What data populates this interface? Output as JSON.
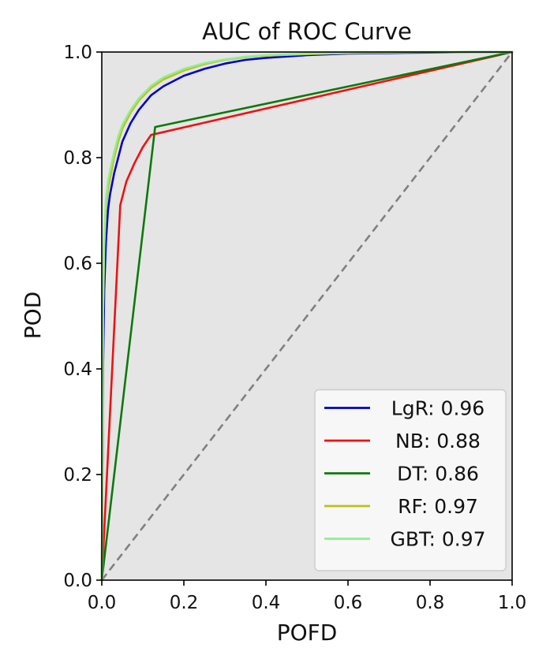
{
  "chart_data": {
    "type": "line",
    "title": "AUC of ROC Curve",
    "xlabel": "POFD",
    "ylabel": "POD",
    "xlim": [
      0,
      1
    ],
    "ylim": [
      0,
      1
    ],
    "xticks": [
      "0.0",
      "0.2",
      "0.4",
      "0.6",
      "0.8",
      "1.0"
    ],
    "yticks": [
      "0.0",
      "0.2",
      "0.4",
      "0.6",
      "0.8",
      "1.0"
    ],
    "background": "#e5e5e5",
    "grid": false,
    "legend_position": "lower-right",
    "diagonal": {
      "color": "#808080",
      "style": "dashed"
    },
    "series": [
      {
        "name": "LgR: 0.96",
        "color": "#0000cc",
        "x": [
          0,
          0.003,
          0.006,
          0.01,
          0.015,
          0.02,
          0.03,
          0.04,
          0.05,
          0.07,
          0.09,
          0.12,
          0.15,
          0.2,
          0.25,
          0.3,
          0.35,
          0.4,
          0.5,
          0.6,
          0.7,
          0.8,
          0.9,
          1.0
        ],
        "y": [
          0,
          0.4,
          0.55,
          0.64,
          0.7,
          0.73,
          0.77,
          0.8,
          0.83,
          0.865,
          0.89,
          0.918,
          0.935,
          0.955,
          0.968,
          0.978,
          0.985,
          0.989,
          0.994,
          0.997,
          0.998,
          0.999,
          1.0,
          1.0
        ]
      },
      {
        "name": "NB: 0.88",
        "color": "#ee1111",
        "x": [
          0,
          0.045,
          0.06,
          0.08,
          0.1,
          0.12,
          1.0
        ],
        "y": [
          0,
          0.71,
          0.755,
          0.79,
          0.82,
          0.843,
          1.0
        ]
      },
      {
        "name": "DT: 0.86",
        "color": "#0a7a0a",
        "x": [
          0,
          0.13,
          1.0
        ],
        "y": [
          0,
          0.858,
          1.0
        ]
      },
      {
        "name": "RF: 0.97",
        "color": "#bfbf18",
        "x": [
          0,
          0.003,
          0.006,
          0.01,
          0.015,
          0.02,
          0.03,
          0.04,
          0.05,
          0.07,
          0.09,
          0.12,
          0.15,
          0.2,
          0.25,
          0.3,
          0.35,
          0.4,
          0.5,
          0.6,
          0.7,
          0.8,
          0.9,
          1.0
        ],
        "y": [
          0,
          0.5,
          0.63,
          0.7,
          0.74,
          0.76,
          0.8,
          0.83,
          0.855,
          0.885,
          0.908,
          0.932,
          0.948,
          0.965,
          0.977,
          0.985,
          0.99,
          0.993,
          0.996,
          0.998,
          0.999,
          1.0,
          1.0,
          1.0
        ]
      },
      {
        "name": "GBT: 0.97",
        "color": "#90ee90",
        "x": [
          0,
          0.003,
          0.006,
          0.01,
          0.015,
          0.02,
          0.03,
          0.04,
          0.05,
          0.07,
          0.09,
          0.12,
          0.15,
          0.2,
          0.25,
          0.3,
          0.35,
          0.4,
          0.5,
          0.6,
          0.7,
          0.8,
          0.9,
          1.0
        ],
        "y": [
          0,
          0.52,
          0.65,
          0.72,
          0.755,
          0.775,
          0.81,
          0.84,
          0.862,
          0.89,
          0.912,
          0.936,
          0.952,
          0.968,
          0.979,
          0.986,
          0.991,
          0.994,
          0.997,
          0.999,
          1.0,
          1.0,
          1.0,
          1.0
        ]
      }
    ]
  }
}
